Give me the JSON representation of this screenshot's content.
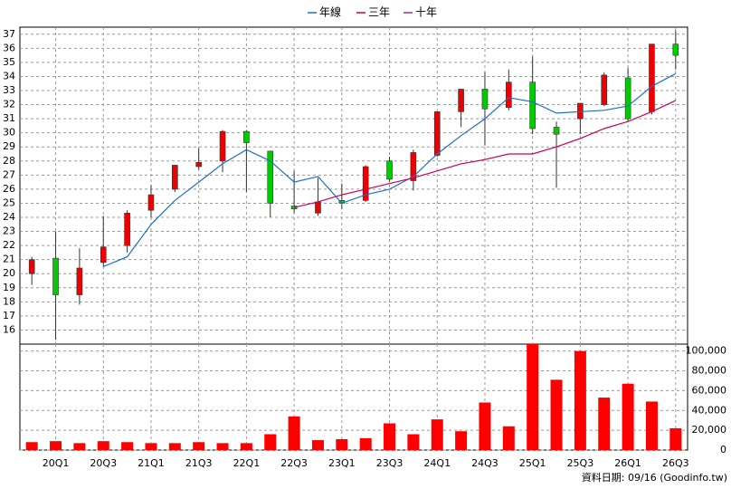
{
  "chart_data": [
    {
      "type": "candlestick",
      "ohlc": {
        "open": [
          20.0,
          21.1,
          18.5,
          20.8,
          22.0,
          24.5,
          26.0,
          27.6,
          28.0,
          30.1,
          28.7,
          24.8,
          24.3,
          25.2,
          25.2,
          28.0,
          26.6,
          28.4,
          31.5,
          33.1,
          31.8,
          33.6,
          30.4,
          31.0,
          32.0,
          33.9,
          31.5,
          36.3
        ],
        "high": [
          21.2,
          23.0,
          21.8,
          24.1,
          24.5,
          26.3,
          27.7,
          28.9,
          30.2,
          30.2,
          28.7,
          27.3,
          26.8,
          26.4,
          27.7,
          28.3,
          28.8,
          31.5,
          33.1,
          34.3,
          34.5,
          35.4,
          30.8,
          32.1,
          34.3,
          34.6,
          36.3,
          37.3
        ],
        "low": [
          19.2,
          15.3,
          17.8,
          20.5,
          21.5,
          24.0,
          25.8,
          27.4,
          27.2,
          25.8,
          24.0,
          24.3,
          24.1,
          24.6,
          25.1,
          26.5,
          25.9,
          28.3,
          30.4,
          29.1,
          31.6,
          29.9,
          26.1,
          29.9,
          31.9,
          30.8,
          31.3,
          34.5
        ],
        "close": [
          21.0,
          18.5,
          20.4,
          21.9,
          24.3,
          25.6,
          27.7,
          27.9,
          30.1,
          29.3,
          25.0,
          24.6,
          25.1,
          25.0,
          27.6,
          26.7,
          28.6,
          31.5,
          33.1,
          31.7,
          33.6,
          30.3,
          29.9,
          32.1,
          34.1,
          31.0,
          36.3,
          35.5
        ]
      },
      "up_color": "#ee0000",
      "down_color": "#00cc00",
      "series": [
        {
          "name": "年線",
          "color": "#1e6fd0",
          "values": [
            null,
            null,
            null,
            20.5,
            21.2,
            23.5,
            25.2,
            26.5,
            27.8,
            28.8,
            28.0,
            26.5,
            26.9,
            25.0,
            25.6,
            26.0,
            26.9,
            28.5,
            29.8,
            31.0,
            32.5,
            32.2,
            31.4,
            31.5,
            31.6,
            31.9,
            33.3,
            34.2
          ]
        },
        {
          "name": "三年",
          "color": "#cc0055",
          "values": [
            null,
            null,
            null,
            null,
            null,
            null,
            null,
            null,
            null,
            null,
            null,
            24.7,
            25.1,
            25.6,
            26.0,
            26.4,
            26.8,
            27.3,
            27.8,
            28.1,
            28.5,
            28.5,
            29.0,
            29.6,
            30.3,
            30.8,
            31.5,
            32.3
          ]
        },
        {
          "name": "十年",
          "color": "#993399",
          "values": [
            null,
            null,
            null,
            null,
            null,
            null,
            null,
            null,
            null,
            null,
            null,
            null,
            null,
            null,
            null,
            null,
            null,
            null,
            null,
            null,
            null,
            null,
            null,
            null,
            null,
            null,
            null,
            null
          ]
        }
      ],
      "ylim": [
        15,
        37.5
      ],
      "yticks": [
        16,
        17,
        18,
        19,
        20,
        21,
        22,
        23,
        24,
        25,
        26,
        27,
        28,
        29,
        30,
        31,
        32,
        33,
        34,
        35,
        36,
        37
      ],
      "grid": true
    },
    {
      "type": "bar",
      "categories": [
        null,
        "20Q1",
        null,
        "20Q3",
        null,
        "21Q1",
        null,
        "21Q3",
        null,
        "22Q1",
        null,
        "22Q3",
        null,
        "23Q1",
        null,
        "23Q3",
        null,
        "24Q1",
        null,
        "24Q3",
        null,
        "25Q1",
        null,
        "25Q3",
        null,
        "26Q1",
        null,
        "26Q3"
      ],
      "values": [
        8000,
        9000,
        7000,
        9000,
        8000,
        7000,
        7000,
        8000,
        7000,
        7000,
        16000,
        34000,
        10000,
        11000,
        12000,
        27000,
        16000,
        31000,
        19000,
        48000,
        24000,
        107000,
        71000,
        100000,
        53000,
        67000,
        49000,
        22000
      ],
      "color": "#ff0000",
      "ylim": [
        0,
        107000
      ],
      "yticks": [
        0,
        {
          "value": 20000,
          "label": "20,000"
        },
        {
          "value": 40000,
          "label": "40,000"
        },
        {
          "value": 60000,
          "label": "60,000"
        },
        {
          "value": 80000,
          "label": "80,000"
        },
        {
          "value": 100000,
          "label": "100,000"
        }
      ],
      "grid": true
    }
  ],
  "footer": "資料日期: 09/16  (Goodinfo.tw)"
}
